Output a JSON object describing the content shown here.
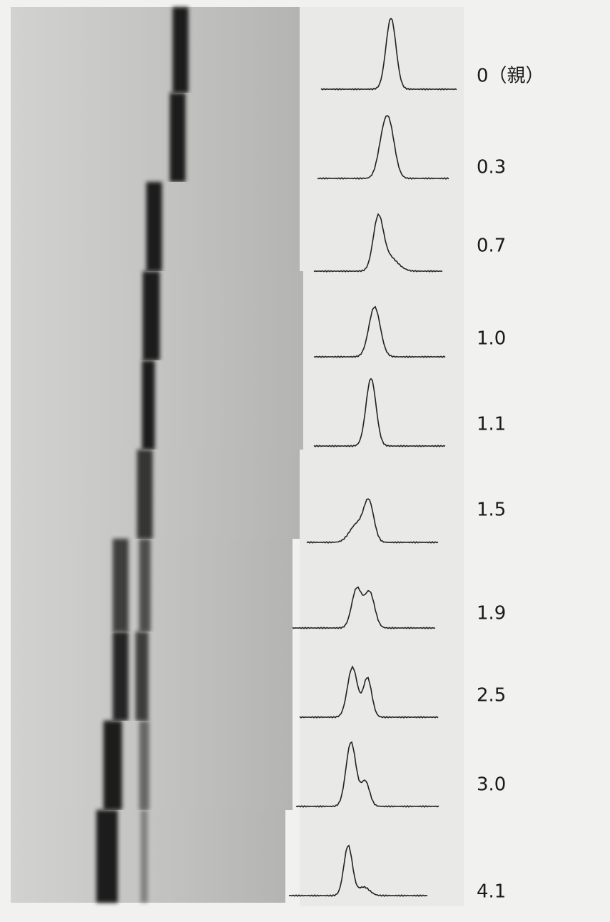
{
  "figure": {
    "rows": [
      {
        "label": "0（親）"
      },
      {
        "label": "0.3"
      },
      {
        "label": "0.7"
      },
      {
        "label": "1.0"
      },
      {
        "label": "1.1"
      },
      {
        "label": "1.5"
      },
      {
        "label": "1.9"
      },
      {
        "label": "2.5"
      },
      {
        "label": "3.0"
      },
      {
        "label": "4.1"
      }
    ]
  }
}
